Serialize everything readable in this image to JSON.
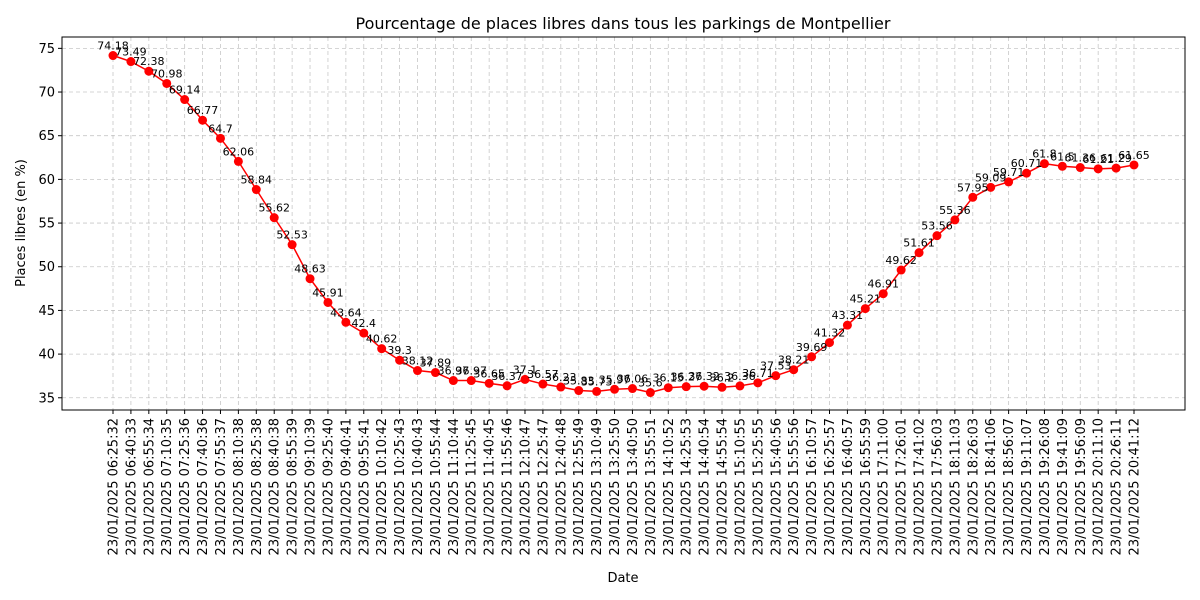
{
  "chart_data": {
    "type": "line",
    "title": "Pourcentage de places libres dans tous les parkings de Montpellier",
    "xlabel": "Date",
    "ylabel": "Places libres (en %)",
    "ylim": [
      33.6,
      76.3
    ],
    "yticks": [
      35,
      40,
      45,
      50,
      55,
      60,
      65,
      70,
      75
    ],
    "grid": true,
    "legend": "none",
    "colors": {
      "line": "#ff0000",
      "marker": "#ff0000"
    },
    "x": [
      "23/01/2025 06:25:32",
      "23/01/2025 06:40:33",
      "23/01/2025 06:55:34",
      "23/01/2025 07:10:35",
      "23/01/2025 07:25:36",
      "23/01/2025 07:40:36",
      "23/01/2025 07:55:37",
      "23/01/2025 08:10:38",
      "23/01/2025 08:25:38",
      "23/01/2025 08:40:38",
      "23/01/2025 08:55:39",
      "23/01/2025 09:10:39",
      "23/01/2025 09:25:40",
      "23/01/2025 09:40:41",
      "23/01/2025 09:55:41",
      "23/01/2025 10:10:42",
      "23/01/2025 10:25:43",
      "23/01/2025 10:40:43",
      "23/01/2025 10:55:44",
      "23/01/2025 11:10:44",
      "23/01/2025 11:25:45",
      "23/01/2025 11:40:45",
      "23/01/2025 11:55:46",
      "23/01/2025 12:10:47",
      "23/01/2025 12:25:47",
      "23/01/2025 12:40:48",
      "23/01/2025 12:55:49",
      "23/01/2025 13:10:49",
      "23/01/2025 13:25:50",
      "23/01/2025 13:40:50",
      "23/01/2025 13:55:51",
      "23/01/2025 14:10:52",
      "23/01/2025 14:25:53",
      "23/01/2025 14:40:54",
      "23/01/2025 14:55:54",
      "23/01/2025 15:10:55",
      "23/01/2025 15:25:55",
      "23/01/2025 15:40:56",
      "23/01/2025 15:55:56",
      "23/01/2025 16:10:57",
      "23/01/2025 16:25:57",
      "23/01/2025 16:40:57",
      "23/01/2025 16:55:59",
      "23/01/2025 17:11:00",
      "23/01/2025 17:26:01",
      "23/01/2025 17:41:02",
      "23/01/2025 17:56:03",
      "23/01/2025 18:11:03",
      "23/01/2025 18:26:03",
      "23/01/2025 18:41:06",
      "23/01/2025 18:56:07",
      "23/01/2025 19:11:07",
      "23/01/2025 19:26:08",
      "23/01/2025 19:41:09",
      "23/01/2025 19:56:09",
      "23/01/2025 20:11:10",
      "23/01/2025 20:26:11",
      "23/01/2025 20:41:12"
    ],
    "x_tick_labels": [
      "23/01/2025 06:25:32",
      "23/01/2025 06:40:33",
      "23/01/2025 06:55:34",
      "23/01/2025 07:10:35",
      "23/01/2025 07:25:36",
      "23/01/2025 07:40:36",
      "23/01/2025 07:55:37",
      "23/01/2025 08:10:38",
      "23/01/2025 08:25:38",
      "23/01/2025 08:40:38",
      "23/01/2025 08:55:39",
      "23/01/2025 09:10:39",
      "23/01/2025 09:25:40",
      "23/01/2025 09:40:41",
      "23/01/2025 09:55:41",
      "23/01/2025 10:10:42",
      "23/01/2025 10:25:43",
      "23/01/2025 10:40:43",
      "23/01/2025 10:55:44",
      "23/01/2025 11:10:44",
      "23/01/2025 11:25:45",
      "23/01/2025 11:40:45",
      "23/01/2025 11:55:46",
      "23/01/2025 12:10:47",
      "23/01/2025 12:25:47",
      "23/01/2025 12:40:48",
      "23/01/2025 12:55:49",
      "23/01/2025 13:10:49",
      "23/01/2025 13:25:50",
      "23/01/2025 13:40:50",
      "23/01/2025 13:55:51",
      "23/01/2025 14:10:52",
      "23/01/2025 14:25:53",
      "23/01/2025 14:40:54",
      "23/01/2025 14:55:54",
      "23/01/2025 15:10:55",
      "23/01/2025 15:25:55",
      "23/01/2025 15:40:56",
      "23/01/2025 15:55:56",
      "23/01/2025 16:10:57",
      "23/01/2025 16:25:57",
      "23/01/2025 16:40:57",
      "23/01/2025 16:55:59",
      "23/01/2025 17:11:00",
      "23/01/2025 17:26:01",
      "23/01/2025 17:41:02",
      "23/01/2025 17:56:03",
      "23/01/2025 18:11:03",
      "23/01/2025 18:26:03",
      "23/01/2025 18:41:06",
      "23/01/2025 18:56:07",
      "23/01/2025 19:11:07",
      "23/01/2025 19:26:08",
      "23/01/2025 19:41:09",
      "23/01/2025 19:56:09",
      "23/01/2025 20:11:10",
      "23/01/2025 20:26:11",
      "23/01/2025 20:41:12"
    ],
    "values": [
      74.18,
      73.49,
      72.38,
      70.98,
      69.14,
      66.77,
      64.7,
      62.06,
      58.84,
      55.62,
      52.53,
      48.63,
      45.91,
      43.64,
      42.4,
      40.62,
      39.3,
      38.12,
      37.89,
      36.97,
      36.97,
      36.65,
      36.37,
      37.1,
      36.57,
      36.23,
      35.83,
      35.73,
      35.97,
      36.06,
      35.6,
      36.15,
      36.27,
      36.32,
      36.2,
      36.36,
      36.71,
      37.53,
      38.21,
      39.69,
      41.32,
      43.31,
      45.21,
      46.91,
      49.62,
      51.61,
      53.56,
      55.36,
      57.95,
      59.09,
      59.71,
      60.71,
      61.8,
      61.5,
      61.36,
      61.21,
      61.29,
      61.65
    ],
    "point_labels": [
      "74.18",
      "73.49",
      "72.38",
      "70.98",
      "69.14",
      "66.77",
      "64.7",
      "62.06",
      "58.84",
      "55.62",
      "52.53",
      "48.63",
      "45.91",
      "43.64",
      "42.4",
      "40.62",
      "39.3",
      "38.12",
      "37.89",
      "36.97",
      "36.97",
      "36.65",
      "36.37",
      "37.1",
      "36.57",
      "36.23",
      "35.83",
      "35.73",
      "35.97",
      "36.06",
      "35.6",
      "36.15",
      "36.27",
      "36.32",
      "36.2",
      "36.36",
      "36.71",
      "37.53",
      "38.21",
      "39.69",
      "41.32",
      "43.31",
      "45.21",
      "46.91",
      "49.62",
      "51.61",
      "53.56",
      "55.36",
      "57.95",
      "59.09",
      "59.71",
      "60.71",
      "61.8",
      "61.5",
      "61.36",
      "61.21",
      "61.29",
      "61.65"
    ]
  }
}
